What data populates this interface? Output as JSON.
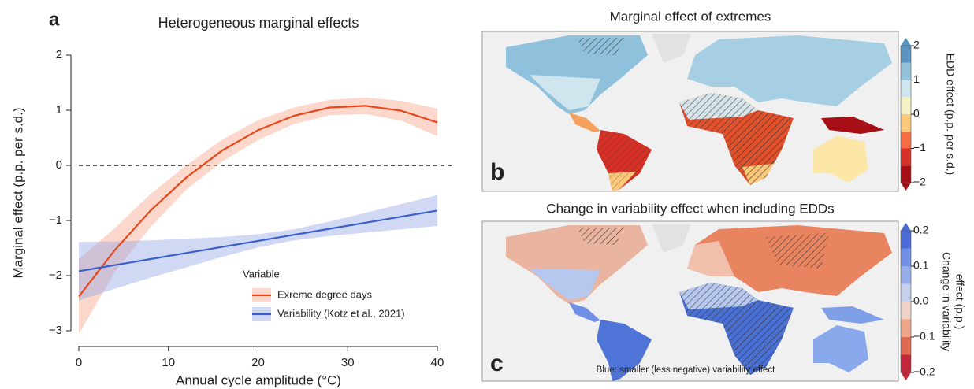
{
  "chart_data": [
    {
      "type": "line",
      "panel": "a",
      "title": "Heterogeneous marginal effects",
      "x_label": "Annual cycle amplitude (°C)",
      "y_label": "Marginal effect (p.p. per s.d.)",
      "x": [
        0,
        4,
        8,
        12,
        16,
        20,
        24,
        28,
        32,
        36,
        40
      ],
      "series": [
        {
          "name": "Exreme degree days",
          "color": "#e8471b",
          "band_color": "#f7a88c",
          "values": [
            -2.38,
            -1.54,
            -0.82,
            -0.22,
            0.27,
            0.64,
            0.9,
            1.05,
            1.08,
            0.99,
            0.78
          ],
          "lower": [
            -3.06,
            -1.94,
            -1.12,
            -0.44,
            0.07,
            0.46,
            0.75,
            0.91,
            0.93,
            0.81,
            0.53
          ],
          "upper": [
            -1.7,
            -1.14,
            -0.52,
            0.0,
            0.47,
            0.82,
            1.05,
            1.19,
            1.23,
            1.17,
            1.03
          ]
        },
        {
          "name": "Variability (Kotz et al., 2021)",
          "color": "#3a5fcd",
          "band_color": "#9aa8e6",
          "values": [
            -1.92,
            -1.81,
            -1.7,
            -1.59,
            -1.48,
            -1.37,
            -1.26,
            -1.15,
            -1.04,
            -0.93,
            -0.82
          ],
          "lower": [
            -2.45,
            -2.24,
            -2.04,
            -1.85,
            -1.66,
            -1.49,
            -1.36,
            -1.28,
            -1.22,
            -1.16,
            -1.1
          ],
          "upper": [
            -1.39,
            -1.38,
            -1.36,
            -1.33,
            -1.3,
            -1.25,
            -1.16,
            -1.02,
            -0.86,
            -0.7,
            -0.54
          ]
        }
      ],
      "legend_title": "Variable",
      "hline": 0,
      "xlim": [
        0,
        40
      ],
      "xticks": [
        0,
        10,
        20,
        30,
        40
      ],
      "ylim": [
        -3.2,
        2.2
      ],
      "yticks": [
        {
          "value": -3,
          "label": "−3"
        },
        {
          "value": -2,
          "label": "−2"
        },
        {
          "value": -1,
          "label": "−1"
        },
        0,
        1,
        2
      ]
    },
    {
      "type": "map",
      "panel": "b",
      "title": "Marginal effect of extremes",
      "colorbar_label": "EDD effect (p.p. per s.d.)",
      "colorbar_lim": [
        -2,
        2
      ],
      "colorbar_colors": [
        "#a50f15",
        "#d73027",
        "#f46d43",
        "#fdc877",
        "#f3f1c6",
        "#cfe6ef",
        "#93c2dc",
        "#5b93c0"
      ],
      "colorbar_ticks": [
        {
          "value": -2,
          "label": "−2"
        },
        {
          "value": -1,
          "label": "−1"
        },
        0,
        1,
        2
      ]
    },
    {
      "type": "map",
      "panel": "c",
      "title": "Change in variability effect when including EDDs",
      "annotation": "Blue: smaller (less negative) variability effect",
      "colorbar_label": [
        "Change in variability",
        "effect (p.p.)"
      ],
      "colorbar_lim": [
        -0.2,
        0.2
      ],
      "colorbar_colors": [
        "#c2263a",
        "#e0694f",
        "#eea68a",
        "#efd3c6",
        "#c6d1ee",
        "#98aeea",
        "#6f8ee6",
        "#4a6ad8"
      ],
      "colorbar_ticks": [
        {
          "value": -0.2,
          "label": "−0.2"
        },
        {
          "value": -0.1,
          "label": "−0.1"
        },
        {
          "value": 0,
          "label": "0.0"
        },
        0.1,
        0.2
      ]
    }
  ]
}
